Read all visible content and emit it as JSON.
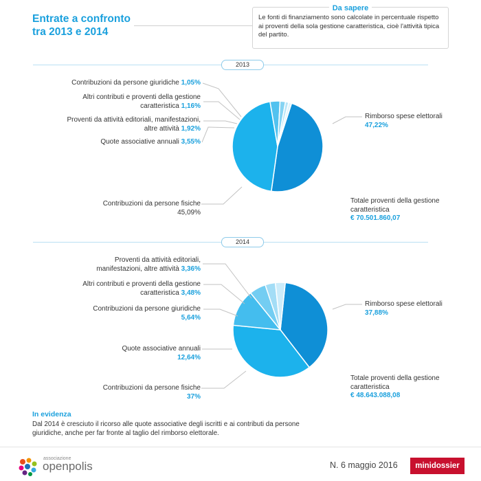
{
  "title": "Entrate a confronto\ntra 2013 e 2014",
  "info_box": {
    "title": "Da sapere",
    "text": "Le fonti di finanziamento sono calcolate in percentuale rispetto ai proventi della sola gestione caratteristica, cioè l'attività tipica del partito."
  },
  "colors": {
    "accent": "#1aa0dd",
    "brand_red": "#c8102e"
  },
  "chart_data": [
    {
      "type": "pie",
      "year_label": "2013",
      "slices": [
        {
          "label": "Rimborso spese elettorali",
          "value_label": "47,22%",
          "value": 47.22,
          "color": "#0f8fd6"
        },
        {
          "label": "Contribuzioni da persone fisiche",
          "value_label": "45,09%",
          "value": 45.09,
          "color": "#1cb2ec"
        },
        {
          "label": "Quote associative annuali",
          "value_label": "3,55%",
          "value": 3.55,
          "color": "#52c2ef"
        },
        {
          "label": "Proventi da attività editoriali, manifestazioni, altre attività",
          "value_label": "1,92%",
          "value": 1.92,
          "color": "#86d4f3"
        },
        {
          "label": "Altri contributi e proventi della gestione caratteristica",
          "value_label": "1,16%",
          "value": 1.16,
          "color": "#b7e5f8"
        },
        {
          "label": "Contribuzioni da persone giuridiche",
          "value_label": "1,05%",
          "value": 1.05,
          "color": "#dff3fc"
        }
      ],
      "total_label": "Totale proventi della gestione caratteristica",
      "total_value": "€ 70.501.860,07"
    },
    {
      "type": "pie",
      "year_label": "2014",
      "slices": [
        {
          "label": "Rimborso spese elettorali",
          "value_label": "37,88%",
          "value": 37.88,
          "color": "#0f8fd6"
        },
        {
          "label": "Contribuzioni da persone fisiche",
          "value_label": "37%",
          "value": 37,
          "color": "#1cb2ec"
        },
        {
          "label": "Quote associative annuali",
          "value_label": "12,64%",
          "value": 12.64,
          "color": "#44bdee"
        },
        {
          "label": "Contribuzioni da persone giuridiche",
          "value_label": "5,64%",
          "value": 5.64,
          "color": "#73cdf2"
        },
        {
          "label": "Altri contributi e proventi della gestione caratteristica",
          "value_label": "3,48%",
          "value": 3.48,
          "color": "#a3ddf6"
        },
        {
          "label": "Proventi da attività editoriali, manifestazioni, altre attività",
          "value_label": "3,36%",
          "value": 3.36,
          "color": "#ccecfa"
        }
      ],
      "total_label": "Totale proventi della gestione caratteristica",
      "total_value": "€ 48.643.088,08"
    }
  ],
  "labels_2013": {
    "giuridiche": "Contribuzioni da persone giuridiche",
    "altri_1": "Altri contributi e proventi della gestione",
    "altri_2": "caratteristica",
    "proventi_1": "Proventi da attività editoriali, manifestazioni,",
    "proventi_2": "altre attività",
    "quote": "Quote associative annuali",
    "fisiche": "Contribuzioni da persone fisiche",
    "rimborso": "Rimborso spese elettorali",
    "totale_1": "Totale proventi della gestione",
    "totale_2": "caratteristica"
  },
  "labels_2014": {
    "proventi_1": "Proventi da attività editoriali,",
    "proventi_2": "manifestazioni, altre attività",
    "altri_1": "Altri contributi e proventi della gestione",
    "altri_2": "caratteristica",
    "giuridiche": "Contribuzioni da persone giuridiche",
    "quote": "Quote associative annuali",
    "fisiche": "Contribuzioni da persone fisiche",
    "rimborso": "Rimborso spese elettorali",
    "totale_1": "Totale proventi della gestione",
    "totale_2": "caratteristica"
  },
  "in_evidenza": {
    "title": "In evidenza",
    "text": "Dal 2014 è cresciuto il ricorso alle quote associative degli iscritti e ai contributi da persone giuridiche, anche per far fronte al taglio del rimborso elettorale."
  },
  "footer": {
    "logo_small": "associazione",
    "logo_name": "openpolis",
    "issue": "N. 6 maggio 2016",
    "badge": "minidossier"
  }
}
